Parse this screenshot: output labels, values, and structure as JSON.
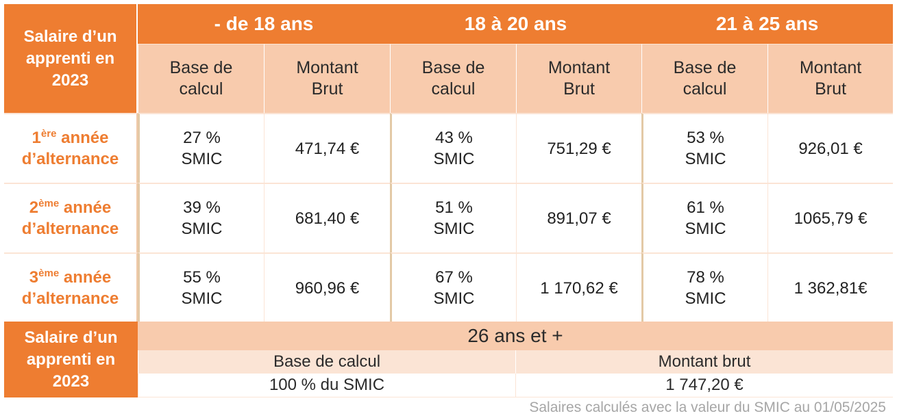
{
  "corner_label": [
    "Salaire d’un",
    "apprenti en",
    "2023"
  ],
  "age_groups": [
    {
      "label": "- de 18 ans"
    },
    {
      "label": "18 à 20 ans"
    },
    {
      "label": "21 à 25 ans"
    }
  ],
  "sub_headers": {
    "base": [
      "Base de",
      "calcul"
    ],
    "montant": [
      "Montant",
      "Brut"
    ]
  },
  "rows": [
    {
      "num": "1",
      "sup": "ère",
      "word": " année",
      "line2": "d’alternance",
      "cells": [
        {
          "base_pct": "27 %",
          "base_unit": "SMIC",
          "montant": "471,74 €"
        },
        {
          "base_pct": "43 %",
          "base_unit": "SMIC",
          "montant": "751,29 €"
        },
        {
          "base_pct": "53 %",
          "base_unit": "SMIC",
          "montant": "926,01 €"
        }
      ]
    },
    {
      "num": "2",
      "sup": "ème",
      "word": " année",
      "line2": "d’alternance",
      "cells": [
        {
          "base_pct": "39 %",
          "base_unit": "SMIC",
          "montant": "681,40 €"
        },
        {
          "base_pct": "51 %",
          "base_unit": "SMIC",
          "montant": "891,07 €"
        },
        {
          "base_pct": "61 %",
          "base_unit": "SMIC",
          "montant": "1065,79 €"
        }
      ]
    },
    {
      "num": "3",
      "sup": "ème",
      "word": " année",
      "line2": "d’alternance",
      "cells": [
        {
          "base_pct": "55 %",
          "base_unit": "SMIC",
          "montant": "960,96 €"
        },
        {
          "base_pct": "67 %",
          "base_unit": "SMIC",
          "montant": "1 170,62 €"
        },
        {
          "base_pct": "78 %",
          "base_unit": "SMIC",
          "montant": "1 362,81€"
        }
      ]
    }
  ],
  "bottom": {
    "corner_label": [
      "Salaire d’un",
      "apprenti en",
      "2023"
    ],
    "header": "26 ans et +",
    "base_label": "Base de calcul",
    "montant_label": "Montant brut",
    "base_value": "100 % du SMIC",
    "montant_value": "1 747,20 €"
  },
  "footnote": "Salaires calculés avec la valeur du SMIC au 01/05/2025",
  "colors": {
    "accent": "#ee7d31",
    "light": "#f8cbad",
    "lighter": "#fbe4d5"
  }
}
